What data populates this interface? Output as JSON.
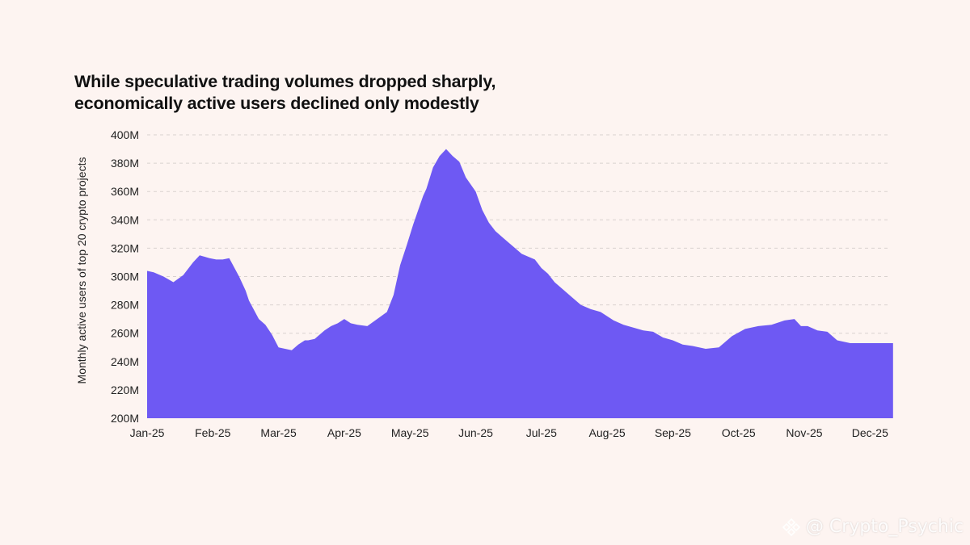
{
  "title": {
    "line1": "While speculative trading volumes dropped sharply,",
    "line2": "economically active users declined only modestly"
  },
  "watermark": {
    "text": "@ Crypto_Psychic"
  },
  "colors": {
    "fill": "#6e59f3",
    "grid": "#d9d2cf",
    "text": "#222222",
    "background": "#fdf4f1"
  },
  "chart_data": {
    "type": "area",
    "title": "While speculative trading volumes dropped sharply, economically active users declined only modestly",
    "xlabel": "",
    "ylabel": "Monthly active users of  top 20 crypto projects",
    "ylim": [
      200,
      400
    ],
    "yunit": "M",
    "yticks": [
      "200M",
      "220M",
      "240M",
      "260M",
      "280M",
      "300M",
      "320M",
      "340M",
      "360M",
      "380M",
      "400M"
    ],
    "xticks": [
      "Jan-25",
      "Feb-25",
      "Mar-25",
      "Apr-25",
      "May-25",
      "Jun-25",
      "Jul-25",
      "Aug-25",
      "Sep-25",
      "Oct-25",
      "Nov-25",
      "Dec-25"
    ],
    "grid": true,
    "series": [
      {
        "name": "Monthly active users",
        "x_month": [
          0,
          0.1,
          0.25,
          0.4,
          0.55,
          0.7,
          0.8,
          0.95,
          1.05,
          1.15,
          1.25,
          1.4,
          1.5,
          1.55,
          1.7,
          1.8,
          1.9,
          2.0,
          2.1,
          2.2,
          2.3,
          2.4,
          2.45,
          2.55,
          2.7,
          2.8,
          2.9,
          3.0,
          3.1,
          3.2,
          3.35,
          3.5,
          3.65,
          3.75,
          3.85,
          3.95,
          4.05,
          4.2,
          4.25,
          4.35,
          4.45,
          4.55,
          4.65,
          4.75,
          4.85,
          5.0,
          5.1,
          5.2,
          5.3,
          5.4,
          5.5,
          5.6,
          5.7,
          5.8,
          5.9,
          6.0,
          6.1,
          6.2,
          6.3,
          6.45,
          6.6,
          6.75,
          6.9,
          7.0,
          7.1,
          7.25,
          7.4,
          7.55,
          7.7,
          7.85,
          8.0,
          8.15,
          8.3,
          8.5,
          8.7,
          8.9,
          9.1,
          9.3,
          9.5,
          9.7,
          9.85,
          9.95,
          10.05,
          10.2,
          10.35,
          10.5,
          10.7,
          10.85,
          10.95,
          11.1,
          11.25,
          11.35
        ],
        "values": [
          304,
          303,
          300,
          296,
          301,
          310,
          315,
          313,
          312,
          312,
          313,
          300,
          290,
          283,
          270,
          266,
          259,
          250,
          249,
          248,
          252,
          255,
          255,
          256,
          262,
          265,
          267,
          270,
          267,
          266,
          265,
          270,
          275,
          287,
          308,
          322,
          337,
          357,
          362,
          377,
          385,
          390,
          385,
          381,
          370,
          360,
          347,
          338,
          332,
          328,
          324,
          320,
          316,
          314,
          312,
          306,
          302,
          296,
          292,
          286,
          280,
          277,
          275,
          272,
          269,
          266,
          264,
          262,
          261,
          257,
          255,
          252,
          251,
          249,
          250,
          258,
          263,
          265,
          266,
          269,
          270,
          265,
          265,
          262,
          261,
          255,
          253,
          253,
          253,
          253,
          253,
          253
        ]
      }
    ]
  }
}
